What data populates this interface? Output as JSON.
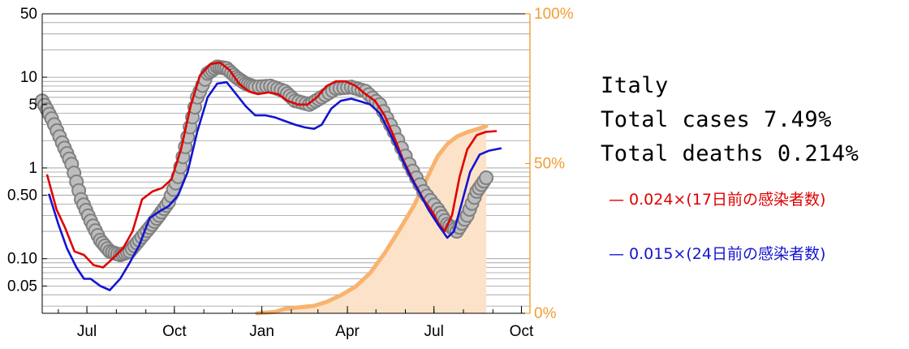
{
  "info": {
    "country": "Italy",
    "total_cases": "Total cases 7.49%",
    "total_deaths": "Total deaths 0.214%"
  },
  "colors": {
    "observed": "#808080",
    "red": "#E00000",
    "blue": "#1414D2",
    "cumulative_line": "#F8B36F",
    "cumulative_fill": "#FCE2C8",
    "right_axis": "#F39C32"
  },
  "chart_data": {
    "type": "line",
    "title": "",
    "xlabel": "",
    "ylabel": "",
    "x_ticks": [
      "Jul",
      "Oct",
      "Jan",
      "Apr",
      "Jul",
      "Oct"
    ],
    "x_tick_dates": [
      "2020-07-01",
      "2020-10-01",
      "2021-01-01",
      "2021-04-01",
      "2021-07-01",
      "2021-10-01"
    ],
    "xlim": [
      "2020-05-15",
      "2021-10-10"
    ],
    "y_scale": "log",
    "ylim": [
      0.025,
      50
    ],
    "y_ticks": [
      "50",
      "10",
      "5",
      "1",
      "0.50",
      "0.10",
      "0.05"
    ],
    "y_tick_values": [
      50,
      10,
      5,
      1,
      0.5,
      0.1,
      0.05
    ],
    "y2_ticks": [
      "100%",
      "50%",
      "0%"
    ],
    "y2_tick_values": [
      100,
      50,
      0
    ],
    "y2_lim": [
      0,
      100
    ],
    "grid": "horizontal",
    "legend": [
      {
        "label": "— 0.024×(17日前の感染者数)",
        "color": "#E00000"
      },
      {
        "label": "— 0.015×(24日前の感染者数)",
        "color": "#1414D2"
      }
    ],
    "series": [
      {
        "name": "",
        "kind": "circles",
        "axis": "left",
        "points": [
          [
            "2020-05-15",
            5.5
          ],
          [
            "2020-05-25",
            3.5
          ],
          [
            "2020-06-05",
            1.9
          ],
          [
            "2020-06-15",
            1.1
          ],
          [
            "2020-06-25",
            0.45
          ],
          [
            "2020-07-05",
            0.26
          ],
          [
            "2020-07-15",
            0.16
          ],
          [
            "2020-07-25",
            0.12
          ],
          [
            "2020-08-05",
            0.11
          ],
          [
            "2020-08-15",
            0.12
          ],
          [
            "2020-08-25",
            0.16
          ],
          [
            "2020-09-05",
            0.22
          ],
          [
            "2020-09-15",
            0.3
          ],
          [
            "2020-09-25",
            0.42
          ],
          [
            "2020-10-05",
            0.8
          ],
          [
            "2020-10-15",
            2.2
          ],
          [
            "2020-10-25",
            6.0
          ],
          [
            "2020-11-05",
            11.0
          ],
          [
            "2020-11-15",
            13.0
          ],
          [
            "2020-11-25",
            12.5
          ],
          [
            "2020-12-05",
            10.0
          ],
          [
            "2020-12-15",
            8.5
          ],
          [
            "2020-12-25",
            7.8
          ],
          [
            "2021-01-10",
            8.0
          ],
          [
            "2021-01-25",
            7.0
          ],
          [
            "2021-02-05",
            5.5
          ],
          [
            "2021-02-20",
            5.0
          ],
          [
            "2021-03-05",
            6.0
          ],
          [
            "2021-03-20",
            7.5
          ],
          [
            "2021-04-05",
            7.8
          ],
          [
            "2021-04-20",
            7.0
          ],
          [
            "2021-05-05",
            5.0
          ],
          [
            "2021-05-20",
            2.5
          ],
          [
            "2021-06-05",
            1.1
          ],
          [
            "2021-06-20",
            0.55
          ],
          [
            "2021-07-05",
            0.35
          ],
          [
            "2021-07-15",
            0.24
          ],
          [
            "2021-07-25",
            0.2
          ],
          [
            "2021-08-05",
            0.3
          ],
          [
            "2021-08-15",
            0.55
          ],
          [
            "2021-08-25",
            0.78
          ]
        ]
      },
      {
        "name": "",
        "kind": "line",
        "axis": "left",
        "color": "#E00000",
        "points": [
          [
            "2020-05-20",
            0.85
          ],
          [
            "2020-05-30",
            0.35
          ],
          [
            "2020-06-08",
            0.22
          ],
          [
            "2020-06-18",
            0.12
          ],
          [
            "2020-06-28",
            0.11
          ],
          [
            "2020-07-08",
            0.085
          ],
          [
            "2020-07-18",
            0.08
          ],
          [
            "2020-07-28",
            0.1
          ],
          [
            "2020-08-08",
            0.13
          ],
          [
            "2020-08-18",
            0.2
          ],
          [
            "2020-08-28",
            0.45
          ],
          [
            "2020-09-08",
            0.55
          ],
          [
            "2020-09-18",
            0.6
          ],
          [
            "2020-09-28",
            0.75
          ],
          [
            "2020-10-08",
            1.6
          ],
          [
            "2020-10-18",
            4.8
          ],
          [
            "2020-10-28",
            10.5
          ],
          [
            "2020-11-08",
            14.0
          ],
          [
            "2020-11-18",
            14.5
          ],
          [
            "2020-11-28",
            12.0
          ],
          [
            "2020-12-08",
            8.5
          ],
          [
            "2020-12-18",
            7.0
          ],
          [
            "2020-12-28",
            6.5
          ],
          [
            "2021-01-08",
            6.8
          ],
          [
            "2021-01-18",
            6.5
          ],
          [
            "2021-01-28",
            5.5
          ],
          [
            "2021-02-08",
            5.0
          ],
          [
            "2021-02-18",
            5.0
          ],
          [
            "2021-02-28",
            6.0
          ],
          [
            "2021-03-10",
            8.0
          ],
          [
            "2021-03-20",
            9.0
          ],
          [
            "2021-03-30",
            9.0
          ],
          [
            "2021-04-10",
            8.0
          ],
          [
            "2021-04-20",
            6.5
          ],
          [
            "2021-04-30",
            5.5
          ],
          [
            "2021-05-10",
            3.8
          ],
          [
            "2021-05-20",
            2.2
          ],
          [
            "2021-05-30",
            1.2
          ],
          [
            "2021-06-10",
            0.7
          ],
          [
            "2021-06-20",
            0.45
          ],
          [
            "2021-06-30",
            0.32
          ],
          [
            "2021-07-05",
            0.25
          ],
          [
            "2021-07-12",
            0.2
          ],
          [
            "2021-07-20",
            0.3
          ],
          [
            "2021-07-28",
            0.8
          ],
          [
            "2021-08-05",
            1.6
          ],
          [
            "2021-08-15",
            2.3
          ],
          [
            "2021-08-25",
            2.5
          ],
          [
            "2021-09-05",
            2.55
          ]
        ]
      },
      {
        "name": "",
        "kind": "line",
        "axis": "left",
        "color": "#1414D2",
        "points": [
          [
            "2020-05-22",
            0.52
          ],
          [
            "2020-06-01",
            0.24
          ],
          [
            "2020-06-10",
            0.13
          ],
          [
            "2020-06-20",
            0.08
          ],
          [
            "2020-06-28",
            0.06
          ],
          [
            "2020-07-05",
            0.06
          ],
          [
            "2020-07-15",
            0.05
          ],
          [
            "2020-07-25",
            0.045
          ],
          [
            "2020-08-05",
            0.06
          ],
          [
            "2020-08-15",
            0.09
          ],
          [
            "2020-08-25",
            0.14
          ],
          [
            "2020-09-05",
            0.28
          ],
          [
            "2020-09-15",
            0.33
          ],
          [
            "2020-09-25",
            0.38
          ],
          [
            "2020-10-05",
            0.5
          ],
          [
            "2020-10-15",
            0.9
          ],
          [
            "2020-10-25",
            2.5
          ],
          [
            "2020-11-05",
            6.0
          ],
          [
            "2020-11-15",
            8.5
          ],
          [
            "2020-11-25",
            8.8
          ],
          [
            "2020-12-05",
            6.5
          ],
          [
            "2020-12-15",
            4.8
          ],
          [
            "2020-12-25",
            3.8
          ],
          [
            "2021-01-05",
            3.8
          ],
          [
            "2021-01-15",
            3.6
          ],
          [
            "2021-01-25",
            3.3
          ],
          [
            "2021-02-05",
            3.0
          ],
          [
            "2021-02-15",
            2.8
          ],
          [
            "2021-02-25",
            2.7
          ],
          [
            "2021-03-05",
            3.0
          ],
          [
            "2021-03-15",
            4.5
          ],
          [
            "2021-03-25",
            5.5
          ],
          [
            "2021-04-05",
            5.8
          ],
          [
            "2021-04-15",
            5.4
          ],
          [
            "2021-04-25",
            5.0
          ],
          [
            "2021-05-05",
            4.0
          ],
          [
            "2021-05-15",
            2.5
          ],
          [
            "2021-05-25",
            1.5
          ],
          [
            "2021-06-05",
            0.85
          ],
          [
            "2021-06-15",
            0.55
          ],
          [
            "2021-06-25",
            0.35
          ],
          [
            "2021-07-05",
            0.24
          ],
          [
            "2021-07-15",
            0.17
          ],
          [
            "2021-07-22",
            0.2
          ],
          [
            "2021-07-30",
            0.4
          ],
          [
            "2021-08-08",
            0.9
          ],
          [
            "2021-08-18",
            1.4
          ],
          [
            "2021-08-28",
            1.55
          ],
          [
            "2021-09-10",
            1.65
          ]
        ]
      },
      {
        "name": "",
        "kind": "area",
        "axis": "right",
        "color": "#F8B36F",
        "points": [
          [
            "2020-12-27",
            0
          ],
          [
            "2021-01-15",
            0.5
          ],
          [
            "2021-01-25",
            1.5
          ],
          [
            "2021-02-10",
            2.0
          ],
          [
            "2021-02-25",
            2.5
          ],
          [
            "2021-03-10",
            3.8
          ],
          [
            "2021-03-25",
            6.0
          ],
          [
            "2021-04-10",
            9.0
          ],
          [
            "2021-04-25",
            13.5
          ],
          [
            "2021-05-10",
            20.0
          ],
          [
            "2021-05-25",
            27.5
          ],
          [
            "2021-06-10",
            36.0
          ],
          [
            "2021-06-25",
            46.0
          ],
          [
            "2021-07-05",
            52.5
          ],
          [
            "2021-07-15",
            56.5
          ],
          [
            "2021-07-25",
            59.0
          ],
          [
            "2021-08-05",
            60.5
          ],
          [
            "2021-08-15",
            61.5
          ],
          [
            "2021-08-25",
            62.5
          ]
        ]
      }
    ]
  }
}
